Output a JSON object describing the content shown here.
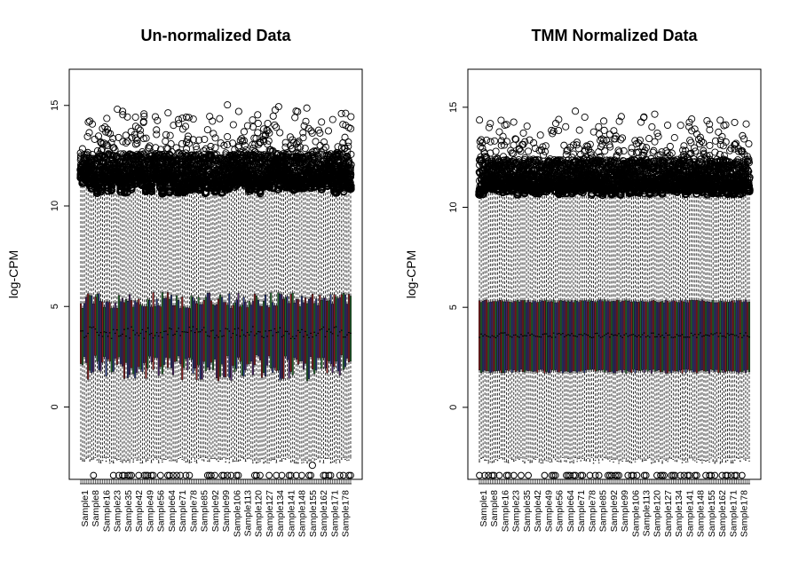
{
  "chart_data": [
    {
      "type": "box",
      "title": "Un-normalized Data",
      "ylabel": "log-CPM",
      "xlabel": "",
      "ylim": [
        -3.6,
        16.8
      ],
      "yticks": [
        0,
        5,
        10,
        15
      ],
      "shown_sample_labels": [
        "Sample1",
        "Sample8",
        "Sample16",
        "Sample23",
        "Sample35",
        "Sample42",
        "Sample49",
        "Sample56",
        "Sample64",
        "Sample71",
        "Sample78",
        "Sample85",
        "Sample92",
        "Sample99",
        "Sample106",
        "Sample113",
        "Sample120",
        "Sample127",
        "Sample134",
        "Sample141",
        "Sample148",
        "Sample155",
        "Sample162",
        "Sample171",
        "Sample178"
      ],
      "n_boxes": 150,
      "box_colors": [
        "#8b1a1a",
        "#1f6a2a",
        "#22337a",
        "#4a1f66"
      ],
      "summary": {
        "median_approx": 3.7,
        "q1_range": [
          1.3,
          2.6
        ],
        "q3_range": [
          4.9,
          5.7
        ],
        "upper_whisker_range": [
          10.5,
          11.3
        ],
        "upper_outliers_range": [
          11.0,
          15.8
        ],
        "lower_outlier": -3.4,
        "extra_low_outlier": -2.9
      }
    },
    {
      "type": "box",
      "title": "TMM Normalized Data",
      "ylabel": "log-CPM",
      "xlabel": "",
      "ylim": [
        -3.6,
        16.9
      ],
      "yticks": [
        0,
        5,
        10,
        15
      ],
      "shown_sample_labels": [
        "Sample1",
        "Sample8",
        "Sample16",
        "Sample23",
        "Sample35",
        "Sample42",
        "Sample49",
        "Sample56",
        "Sample64",
        "Sample71",
        "Sample78",
        "Sample85",
        "Sample92",
        "Sample99",
        "Sample106",
        "Sample113",
        "Sample120",
        "Sample127",
        "Sample134",
        "Sample141",
        "Sample148",
        "Sample155",
        "Sample162",
        "Sample171",
        "Sample178"
      ],
      "n_boxes": 150,
      "box_colors": [
        "#8b1a1a",
        "#1f6a2a",
        "#22337a",
        "#4a1f66"
      ],
      "summary": {
        "median_approx": 3.6,
        "q1_approx": 1.8,
        "q3_approx": 5.3,
        "upper_whisker_range": [
          10.5,
          11.0
        ],
        "upper_outliers_range": [
          10.7,
          16.4
        ],
        "lower_outlier": -3.4
      }
    }
  ]
}
